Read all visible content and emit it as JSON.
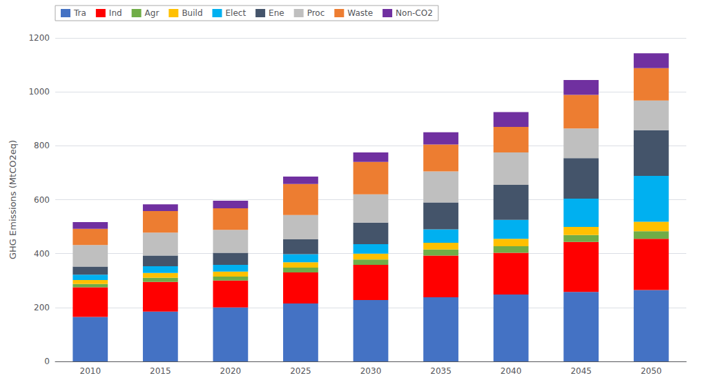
{
  "chart_data": {
    "type": "bar",
    "stacked": true,
    "ylabel": "GHG Emissions (MtCO2eq)",
    "categories": [
      "2010",
      "2015",
      "2020",
      "2025",
      "2030",
      "2035",
      "2040",
      "2045",
      "2050"
    ],
    "series": [
      {
        "name": "Tra",
        "color": "#4472C4",
        "values": [
          165,
          185,
          200,
          215,
          228,
          238,
          248,
          258,
          265
        ]
      },
      {
        "name": "Ind",
        "color": "#FF0000",
        "values": [
          110,
          110,
          100,
          115,
          130,
          155,
          155,
          185,
          190
        ]
      },
      {
        "name": "Agr",
        "color": "#70AD47",
        "values": [
          12,
          15,
          15,
          18,
          20,
          22,
          24,
          26,
          28
        ]
      },
      {
        "name": "Build",
        "color": "#FFC000",
        "values": [
          15,
          18,
          18,
          20,
          22,
          25,
          28,
          30,
          35
        ]
      },
      {
        "name": "Elect",
        "color": "#00B0F0",
        "values": [
          20,
          25,
          25,
          30,
          35,
          50,
          70,
          105,
          170
        ]
      },
      {
        "name": "Ene",
        "color": "#44546A",
        "values": [
          30,
          40,
          45,
          55,
          80,
          100,
          130,
          150,
          170
        ]
      },
      {
        "name": "Proc",
        "color": "#BFBFBF",
        "values": [
          80,
          85,
          85,
          90,
          105,
          115,
          120,
          110,
          110
        ]
      },
      {
        "name": "Waste",
        "color": "#ED7D31",
        "values": [
          60,
          80,
          80,
          115,
          120,
          100,
          95,
          125,
          120
        ]
      },
      {
        "name": "Non-CO2",
        "color": "#7030A0",
        "values": [
          25,
          25,
          28,
          28,
          35,
          45,
          55,
          55,
          55
        ]
      }
    ],
    "ylim": [
      0,
      1200
    ],
    "yticks": [
      0,
      200,
      400,
      600,
      800,
      1000,
      1200
    ],
    "grid": true,
    "legend": "upper left"
  }
}
